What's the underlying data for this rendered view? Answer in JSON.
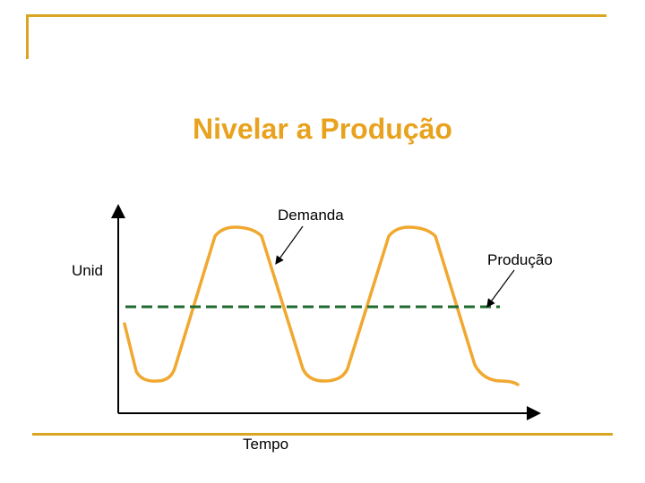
{
  "slide": {
    "title": "Nivelar a Produção"
  },
  "diagram": {
    "labels": {
      "demand": "Demanda",
      "production": "Produção",
      "y_axis": "Unid",
      "x_axis": "Tempo"
    }
  },
  "colors": {
    "accent": "#DAA520",
    "title": "#E8A21E",
    "demand_curve": "#F0A830",
    "production_line": "#1F6B2E",
    "axis": "#000000"
  }
}
